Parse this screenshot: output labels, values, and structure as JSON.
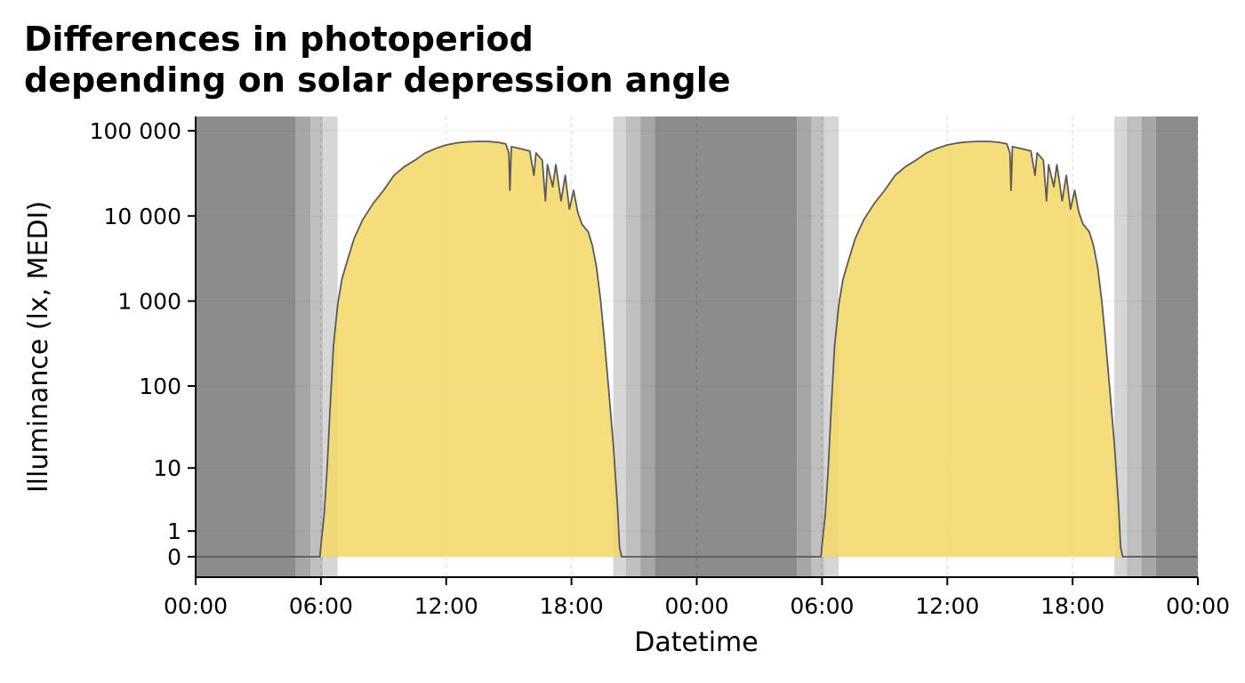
{
  "chart_data": {
    "type": "area",
    "title": "Differences in photoperiod\ndepending on solar depression angle",
    "title_lines": [
      "Differences in photoperiod",
      "depending on solar depression angle"
    ],
    "xlabel": "Datetime",
    "ylabel": "Illuminance (lx, MEDI)",
    "x_scale": "time (hours over two days)",
    "xlim_hours": [
      0,
      48
    ],
    "x_ticks": [
      {
        "hour": 0,
        "label": "00:00"
      },
      {
        "hour": 6,
        "label": "06:00"
      },
      {
        "hour": 12,
        "label": "12:00"
      },
      {
        "hour": 18,
        "label": "18:00"
      },
      {
        "hour": 24,
        "label": "00:00"
      },
      {
        "hour": 30,
        "label": "06:00"
      },
      {
        "hour": 36,
        "label": "12:00"
      },
      {
        "hour": 42,
        "label": "18:00"
      },
      {
        "hour": 48,
        "label": "00:00"
      }
    ],
    "y_scale": "symlog (log10(1+y))",
    "ylim": [
      0,
      120000
    ],
    "y_ticks": [
      {
        "value": 0,
        "label": "0"
      },
      {
        "value": 1,
        "label": "1"
      },
      {
        "value": 10,
        "label": "10"
      },
      {
        "value": 100,
        "label": "100"
      },
      {
        "value": 1000,
        "label": "1 000"
      },
      {
        "value": 10000,
        "label": "10 000"
      },
      {
        "value": 100000,
        "label": "100 000"
      }
    ],
    "grid": true,
    "colors": {
      "fill": "#f5d86a",
      "line": "#5a5a5a",
      "night": "#8c8c8c",
      "astronomical": "#a6a6a6",
      "nautical": "#bfbfbf",
      "civil": "#d6d6d6"
    },
    "shading_bands_hours": [
      {
        "start": 0,
        "end": 4.8,
        "phase": "night"
      },
      {
        "start": 4.8,
        "end": 5.5,
        "phase": "astronomical"
      },
      {
        "start": 5.5,
        "end": 6.1,
        "phase": "nautical"
      },
      {
        "start": 6.1,
        "end": 6.8,
        "phase": "civil"
      },
      {
        "start": 20.0,
        "end": 20.6,
        "phase": "civil"
      },
      {
        "start": 20.6,
        "end": 21.3,
        "phase": "nautical"
      },
      {
        "start": 21.3,
        "end": 22.0,
        "phase": "astronomical"
      },
      {
        "start": 22.0,
        "end": 28.8,
        "phase": "night"
      },
      {
        "start": 28.8,
        "end": 29.5,
        "phase": "astronomical"
      },
      {
        "start": 29.5,
        "end": 30.1,
        "phase": "nautical"
      },
      {
        "start": 30.1,
        "end": 30.8,
        "phase": "civil"
      },
      {
        "start": 44.0,
        "end": 44.6,
        "phase": "civil"
      },
      {
        "start": 44.6,
        "end": 45.3,
        "phase": "nautical"
      },
      {
        "start": 45.3,
        "end": 46.0,
        "phase": "astronomical"
      },
      {
        "start": 46.0,
        "end": 48,
        "phase": "night"
      }
    ],
    "series": [
      {
        "values": [
          [
            0,
            0
          ],
          [
            5.95,
            0
          ],
          [
            6.02,
            0.5
          ],
          [
            6.15,
            2
          ],
          [
            6.3,
            10
          ],
          [
            6.45,
            60
          ],
          [
            6.6,
            300
          ],
          [
            6.8,
            900
          ],
          [
            7.0,
            1800
          ],
          [
            7.3,
            3200
          ],
          [
            7.6,
            5500
          ],
          [
            8.0,
            9000
          ],
          [
            8.5,
            14000
          ],
          [
            9.0,
            20000
          ],
          [
            9.5,
            30000
          ],
          [
            10.0,
            38000
          ],
          [
            10.5,
            45000
          ],
          [
            11.0,
            55000
          ],
          [
            11.5,
            62000
          ],
          [
            12.0,
            68000
          ],
          [
            12.5,
            72000
          ],
          [
            13.0,
            74000
          ],
          [
            13.5,
            75000
          ],
          [
            14.0,
            75000
          ],
          [
            14.5,
            73000
          ],
          [
            14.85,
            70000
          ],
          [
            15.0,
            55000
          ],
          [
            15.05,
            20000
          ],
          [
            15.12,
            65000
          ],
          [
            15.5,
            62000
          ],
          [
            16.0,
            58000
          ],
          [
            16.2,
            30000
          ],
          [
            16.3,
            55000
          ],
          [
            16.6,
            45000
          ],
          [
            16.75,
            15000
          ],
          [
            16.85,
            40000
          ],
          [
            17.1,
            22000
          ],
          [
            17.25,
            40000
          ],
          [
            17.5,
            15000
          ],
          [
            17.7,
            30000
          ],
          [
            17.9,
            12000
          ],
          [
            18.1,
            20000
          ],
          [
            18.3,
            11000
          ],
          [
            18.5,
            8000
          ],
          [
            18.8,
            6500
          ],
          [
            19.0,
            4500
          ],
          [
            19.2,
            2500
          ],
          [
            19.4,
            1000
          ],
          [
            19.6,
            300
          ],
          [
            19.8,
            80
          ],
          [
            20.0,
            20
          ],
          [
            20.2,
            3
          ],
          [
            20.3,
            0.3
          ],
          [
            20.4,
            0
          ],
          [
            29.95,
            0
          ],
          [
            30.02,
            0.5
          ],
          [
            30.15,
            2
          ],
          [
            30.3,
            10
          ],
          [
            30.45,
            60
          ],
          [
            30.6,
            300
          ],
          [
            30.8,
            900
          ],
          [
            31.0,
            1800
          ],
          [
            31.3,
            3200
          ],
          [
            31.6,
            5500
          ],
          [
            32.0,
            9000
          ],
          [
            32.5,
            14000
          ],
          [
            33.0,
            20000
          ],
          [
            33.5,
            30000
          ],
          [
            34.0,
            38000
          ],
          [
            34.5,
            45000
          ],
          [
            35.0,
            55000
          ],
          [
            35.5,
            62000
          ],
          [
            36.0,
            68000
          ],
          [
            36.5,
            72000
          ],
          [
            37.0,
            74000
          ],
          [
            37.5,
            75000
          ],
          [
            38.0,
            75000
          ],
          [
            38.5,
            73000
          ],
          [
            38.85,
            70000
          ],
          [
            39.0,
            55000
          ],
          [
            39.05,
            20000
          ],
          [
            39.12,
            65000
          ],
          [
            39.5,
            62000
          ],
          [
            40.0,
            58000
          ],
          [
            40.2,
            30000
          ],
          [
            40.3,
            55000
          ],
          [
            40.6,
            45000
          ],
          [
            40.75,
            15000
          ],
          [
            40.85,
            40000
          ],
          [
            41.1,
            22000
          ],
          [
            41.25,
            40000
          ],
          [
            41.5,
            15000
          ],
          [
            41.7,
            30000
          ],
          [
            41.9,
            12000
          ],
          [
            42.1,
            20000
          ],
          [
            42.3,
            11000
          ],
          [
            42.5,
            8000
          ],
          [
            42.8,
            6500
          ],
          [
            43.0,
            4500
          ],
          [
            43.2,
            2500
          ],
          [
            43.4,
            1000
          ],
          [
            43.6,
            300
          ],
          [
            43.8,
            80
          ],
          [
            44.0,
            20
          ],
          [
            44.2,
            3
          ],
          [
            44.3,
            0.3
          ],
          [
            44.4,
            0
          ],
          [
            48,
            0
          ]
        ]
      }
    ]
  }
}
